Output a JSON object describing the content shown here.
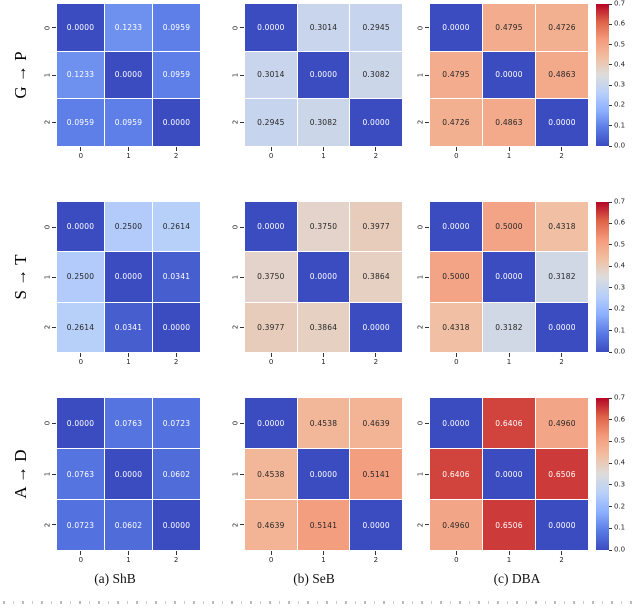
{
  "rows": [
    {
      "label": "G → P"
    },
    {
      "label": "S → T"
    },
    {
      "label": "A → D"
    }
  ],
  "captions": [
    "(a) ShB",
    "(b) SeB",
    "(c) DBA"
  ],
  "colorbar": {
    "ticks": [
      "0.7",
      "0.6",
      "0.5",
      "0.4",
      "0.3",
      "0.2",
      "0.1",
      "0.0"
    ],
    "vmin": 0.0,
    "vmax": 0.7,
    "colormap": "coolwarm"
  },
  "colors": {
    "cmap_low": "#3B4CC0",
    "cmap_mid": "#DDDCDB",
    "cmap_high": "#B40426",
    "annot_light": "#FFFFFF",
    "annot_dark": "#262626",
    "background": "#FFFFFF"
  },
  "chart_data": [
    {
      "type": "heatmap",
      "row_label": "G → P",
      "subfigure": "(a) ShB",
      "x_ticklabels": [
        "0",
        "1",
        "2"
      ],
      "y_ticklabels": [
        "0",
        "1",
        "2"
      ],
      "values": [
        [
          0.0,
          0.1233,
          0.0959
        ],
        [
          0.1233,
          0.0,
          0.0959
        ],
        [
          0.0959,
          0.0959,
          0.0
        ]
      ],
      "vmin": 0.0,
      "vmax": 0.7,
      "colormap": "coolwarm"
    },
    {
      "type": "heatmap",
      "row_label": "G → P",
      "subfigure": "(b) SeB",
      "x_ticklabels": [
        "0",
        "1",
        "2"
      ],
      "y_ticklabels": [
        "0",
        "1",
        "2"
      ],
      "values": [
        [
          0.0,
          0.3014,
          0.2945
        ],
        [
          0.3014,
          0.0,
          0.3082
        ],
        [
          0.2945,
          0.3082,
          0.0
        ]
      ],
      "vmin": 0.0,
      "vmax": 0.7,
      "colormap": "coolwarm"
    },
    {
      "type": "heatmap",
      "row_label": "G → P",
      "subfigure": "(c) DBA",
      "x_ticklabels": [
        "0",
        "1",
        "2"
      ],
      "y_ticklabels": [
        "0",
        "1",
        "2"
      ],
      "values": [
        [
          0.0,
          0.4795,
          0.4726
        ],
        [
          0.4795,
          0.0,
          0.4863
        ],
        [
          0.4726,
          0.4863,
          0.0
        ]
      ],
      "vmin": 0.0,
      "vmax": 0.7,
      "colormap": "coolwarm"
    },
    {
      "type": "heatmap",
      "row_label": "S → T",
      "subfigure": "(a) ShB",
      "x_ticklabels": [
        "0",
        "1",
        "2"
      ],
      "y_ticklabels": [
        "0",
        "1",
        "2"
      ],
      "values": [
        [
          0.0,
          0.25,
          0.2614
        ],
        [
          0.25,
          0.0,
          0.0341
        ],
        [
          0.2614,
          0.0341,
          0.0
        ]
      ],
      "vmin": 0.0,
      "vmax": 0.7,
      "colormap": "coolwarm"
    },
    {
      "type": "heatmap",
      "row_label": "S → T",
      "subfigure": "(b) SeB",
      "x_ticklabels": [
        "0",
        "1",
        "2"
      ],
      "y_ticklabels": [
        "0",
        "1",
        "2"
      ],
      "values": [
        [
          0.0,
          0.375,
          0.3977
        ],
        [
          0.375,
          0.0,
          0.3864
        ],
        [
          0.3977,
          0.3864,
          0.0
        ]
      ],
      "vmin": 0.0,
      "vmax": 0.7,
      "colormap": "coolwarm"
    },
    {
      "type": "heatmap",
      "row_label": "S → T",
      "subfigure": "(c) DBA",
      "x_ticklabels": [
        "0",
        "1",
        "2"
      ],
      "y_ticklabels": [
        "0",
        "1",
        "2"
      ],
      "values": [
        [
          0.0,
          0.5,
          0.4318
        ],
        [
          0.5,
          0.0,
          0.3182
        ],
        [
          0.4318,
          0.3182,
          0.0
        ]
      ],
      "vmin": 0.0,
      "vmax": 0.7,
      "colormap": "coolwarm"
    },
    {
      "type": "heatmap",
      "row_label": "A → D",
      "subfigure": "(a) ShB",
      "x_ticklabels": [
        "0",
        "1",
        "2"
      ],
      "y_ticklabels": [
        "0",
        "1",
        "2"
      ],
      "values": [
        [
          0.0,
          0.0763,
          0.0723
        ],
        [
          0.0763,
          0.0,
          0.0602
        ],
        [
          0.0723,
          0.0602,
          0.0
        ]
      ],
      "vmin": 0.0,
      "vmax": 0.7,
      "colormap": "coolwarm"
    },
    {
      "type": "heatmap",
      "row_label": "A → D",
      "subfigure": "(b) SeB",
      "x_ticklabels": [
        "0",
        "1",
        "2"
      ],
      "y_ticklabels": [
        "0",
        "1",
        "2"
      ],
      "values": [
        [
          0.0,
          0.4538,
          0.4639
        ],
        [
          0.4538,
          0.0,
          0.5141
        ],
        [
          0.4639,
          0.5141,
          0.0
        ]
      ],
      "vmin": 0.0,
      "vmax": 0.7,
      "colormap": "coolwarm"
    },
    {
      "type": "heatmap",
      "row_label": "A → D",
      "subfigure": "(c) DBA",
      "x_ticklabels": [
        "0",
        "1",
        "2"
      ],
      "y_ticklabels": [
        "0",
        "1",
        "2"
      ],
      "values": [
        [
          0.0,
          0.6406,
          0.496
        ],
        [
          0.6406,
          0.0,
          0.6506
        ],
        [
          0.496,
          0.6506,
          0.0
        ]
      ],
      "vmin": 0.0,
      "vmax": 0.7,
      "colormap": "coolwarm"
    }
  ]
}
